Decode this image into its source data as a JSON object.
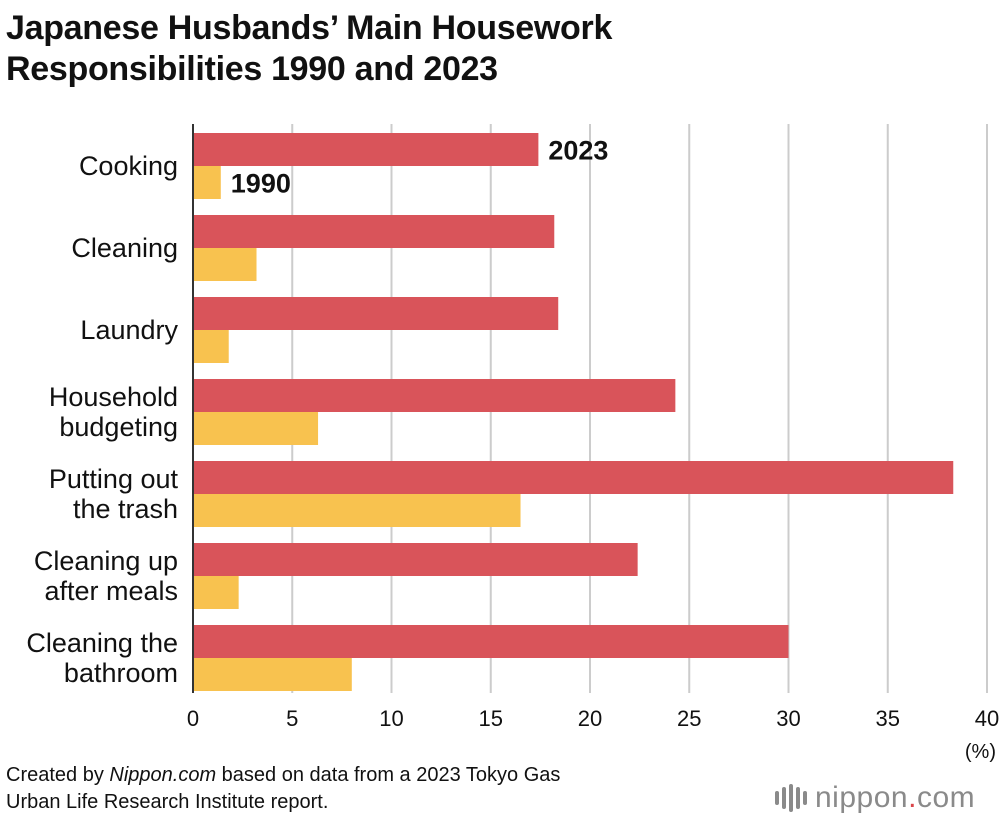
{
  "title_lines": [
    "Japanese Husbands’ Main Housework",
    "Responsibilities 1990 and 2023"
  ],
  "footer": {
    "line1_prefix": "Created by ",
    "line1_site": "Nippon.com",
    "line1_suffix": " based on data from a 2023 Tokyo Gas",
    "line2": "Urban Life Research Institute report."
  },
  "logo": {
    "name": "nippon",
    "dot": ".",
    "tld": "com",
    "mark_icon": "nippon-logo-mark-icon"
  },
  "colors": {
    "series_2023": "#d9545a",
    "series_1990": "#f8c24f",
    "grid": "#cccccc",
    "axis": "#333333",
    "brand_dot": "#d9454a"
  },
  "chart_data": {
    "type": "bar",
    "orientation": "horizontal",
    "title": "Japanese Husbands’ Main Housework Responsibilities 1990 and 2023",
    "xlabel": "(%)",
    "ylabel": "",
    "xlim": [
      0,
      40
    ],
    "xticks": [
      0,
      5,
      10,
      15,
      20,
      25,
      30,
      35,
      40
    ],
    "grid": true,
    "categories": [
      [
        "Cooking"
      ],
      [
        "Cleaning"
      ],
      [
        "Laundry"
      ],
      [
        "Household",
        "budgeting"
      ],
      [
        "Putting out",
        "the trash"
      ],
      [
        "Cleaning up",
        "after meals"
      ],
      [
        "Cleaning the",
        "bathroom"
      ]
    ],
    "series": [
      {
        "name": "2023",
        "values": [
          17.4,
          18.2,
          18.4,
          24.3,
          38.3,
          22.4,
          30.0
        ]
      },
      {
        "name": "1990",
        "values": [
          1.4,
          3.2,
          1.8,
          6.3,
          16.5,
          2.3,
          8.0
        ]
      }
    ],
    "legend": "direct labels on first category"
  }
}
